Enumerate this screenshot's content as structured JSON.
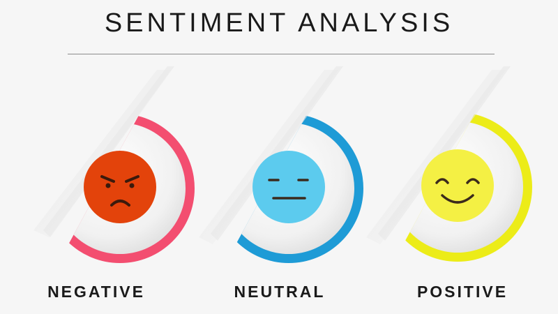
{
  "title": "SENTIMENT ANALYSIS",
  "sentiments": [
    {
      "label": "NEGATIVE",
      "icon": "angry-face-icon",
      "ring_color": "#f34e70",
      "face_color": "#e3430b"
    },
    {
      "label": "NEUTRAL",
      "icon": "neutral-face-icon",
      "ring_color": "#1e9bd6",
      "face_color": "#5ccbee"
    },
    {
      "label": "POSITIVE",
      "icon": "smiling-face-icon",
      "ring_color": "#ecec18",
      "face_color": "#f4f044"
    }
  ]
}
